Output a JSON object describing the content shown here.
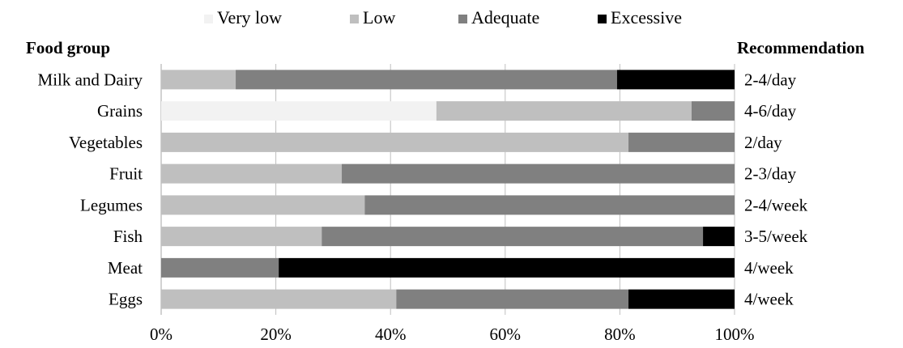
{
  "chart_data": {
    "type": "bar",
    "orientation": "horizontal",
    "stacked": "percent",
    "left_header": "Food group",
    "right_header": "Recommendation",
    "categories": [
      "Milk and Dairy",
      "Grains",
      "Vegetables",
      "Fruit",
      "Legumes",
      "Fish",
      "Meat",
      "Eggs"
    ],
    "recommendations": [
      "2-4/day",
      "4-6/day",
      "2/day",
      "2-3/day",
      "2-4/week",
      "3-5/week",
      "4/week",
      "4/week"
    ],
    "series": [
      {
        "name": "Very low",
        "color": "#f2f2f2",
        "values": [
          0,
          48,
          0,
          0,
          0,
          0,
          0,
          0
        ]
      },
      {
        "name": "Low",
        "color": "#bfbfbf",
        "values": [
          13,
          44.5,
          81.5,
          31.5,
          35.5,
          28,
          0,
          41
        ]
      },
      {
        "name": "Adequate",
        "color": "#808080",
        "values": [
          66.5,
          7.5,
          18.5,
          68.5,
          64.5,
          66.5,
          20.5,
          40.5
        ]
      },
      {
        "name": "Excessive",
        "color": "#000000",
        "values": [
          20.5,
          0,
          0,
          0,
          0,
          5.5,
          79.5,
          18.5
        ]
      }
    ],
    "x_ticks": [
      "0%",
      "20%",
      "40%",
      "60%",
      "80%",
      "100%"
    ],
    "xlim": [
      0,
      100
    ],
    "grid": "vertical",
    "legend": "top"
  }
}
